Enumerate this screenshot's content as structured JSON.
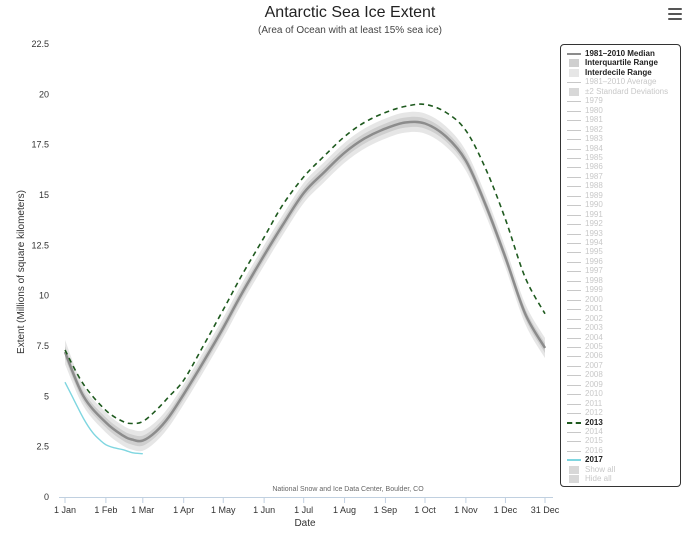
{
  "title": "Antarctic Sea Ice Extent",
  "subtitle": "(Area of Ocean with at least 15% sea ice)",
  "credit": "National Snow and Ice Data Center, Boulder, CO",
  "menu_icon": "hamburger-menu-icon",
  "colors": {
    "median": "#8c8c8c",
    "iqr": "#cfcfcf",
    "idr": "#e6e6e6",
    "year_2013": "#1f5a1f",
    "year_2017": "#7fd6e0",
    "inactive": "#c8c8c8",
    "axis_line": "#c0d0e0"
  },
  "chart_data": {
    "type": "line",
    "title": "Antarctic Sea Ice Extent",
    "subtitle": "(Area of Ocean with at least 15% sea ice)",
    "xlabel": "Date",
    "ylabel": "Extent (Millions of square kilometers)",
    "x_ticks": [
      "1 Jan",
      "1 Feb",
      "1 Mar",
      "1 Apr",
      "1 May",
      "1 Jun",
      "1 Jul",
      "1 Aug",
      "1 Sep",
      "1 Oct",
      "1 Nov",
      "1 Dec",
      "31 Dec"
    ],
    "x_tick_days": [
      1,
      32,
      60,
      91,
      121,
      152,
      182,
      213,
      244,
      274,
      305,
      335,
      365
    ],
    "ylim": [
      0,
      22.5
    ],
    "y_ticks": [
      0,
      2.5,
      5,
      7.5,
      10,
      12.5,
      15,
      17.5,
      20,
      22.5
    ],
    "grid": false,
    "legend_position": "right",
    "series": [
      {
        "name": "1981-2010 Median",
        "style": "line",
        "x": [
          1,
          15,
          32,
          45,
          52,
          60,
          70,
          80,
          91,
          105,
          121,
          135,
          152,
          166,
          182,
          197,
          213,
          228,
          244,
          259,
          274,
          290,
          305,
          320,
          335,
          350,
          365
        ],
        "y": [
          7.2,
          5.0,
          3.7,
          3.05,
          2.85,
          2.8,
          3.25,
          4.0,
          5.1,
          6.6,
          8.4,
          10.1,
          12.0,
          13.5,
          15.1,
          16.1,
          17.1,
          17.8,
          18.3,
          18.6,
          18.55,
          17.9,
          16.7,
          14.5,
          11.9,
          9.1,
          7.4
        ]
      },
      {
        "name": "Interquartile Range",
        "style": "band",
        "lower": [
          6.9,
          4.75,
          3.45,
          2.8,
          2.6,
          2.55,
          3.0,
          3.75,
          4.85,
          6.35,
          8.15,
          9.85,
          11.75,
          13.25,
          14.85,
          15.85,
          16.85,
          17.55,
          18.05,
          18.35,
          18.3,
          17.65,
          16.45,
          14.25,
          11.65,
          8.85,
          7.15
        ],
        "upper": [
          7.5,
          5.25,
          3.95,
          3.3,
          3.1,
          3.05,
          3.5,
          4.25,
          5.35,
          6.85,
          8.65,
          10.35,
          12.25,
          13.75,
          15.35,
          16.35,
          17.35,
          18.05,
          18.55,
          18.85,
          18.8,
          18.15,
          16.95,
          14.75,
          12.15,
          9.35,
          7.65
        ]
      },
      {
        "name": "Interdecile Range",
        "style": "band",
        "lower": [
          6.6,
          4.5,
          3.2,
          2.55,
          2.35,
          2.3,
          2.75,
          3.5,
          4.6,
          6.1,
          7.9,
          9.6,
          11.5,
          13.0,
          14.6,
          15.6,
          16.6,
          17.3,
          17.8,
          18.1,
          18.05,
          17.4,
          16.2,
          14.0,
          11.4,
          8.6,
          6.9
        ],
        "upper": [
          7.8,
          5.5,
          4.2,
          3.55,
          3.35,
          3.3,
          3.75,
          4.5,
          5.6,
          7.1,
          8.9,
          10.6,
          12.5,
          14.0,
          15.6,
          16.6,
          17.6,
          18.3,
          18.8,
          19.1,
          19.05,
          18.4,
          17.2,
          15.0,
          12.4,
          9.6,
          7.9
        ]
      },
      {
        "name": "2013",
        "style": "dashed",
        "x": [
          1,
          15,
          32,
          45,
          52,
          60,
          70,
          80,
          91,
          105,
          121,
          135,
          152,
          166,
          182,
          197,
          213,
          228,
          244,
          259,
          274,
          290,
          305,
          320,
          335,
          350,
          365
        ],
        "y": [
          7.3,
          5.6,
          4.3,
          3.75,
          3.65,
          3.75,
          4.3,
          5.0,
          5.8,
          7.4,
          9.3,
          11.0,
          12.9,
          14.5,
          15.9,
          16.9,
          17.9,
          18.6,
          19.1,
          19.4,
          19.5,
          19.1,
          18.2,
          16.3,
          13.8,
          10.9,
          9.1
        ]
      },
      {
        "name": "2017",
        "style": "line",
        "x": [
          1,
          8,
          15,
          22,
          28,
          32,
          38,
          45,
          52,
          60
        ],
        "y": [
          5.7,
          4.8,
          3.9,
          3.2,
          2.8,
          2.6,
          2.45,
          2.35,
          2.2,
          2.15
        ]
      }
    ]
  },
  "legend": {
    "items": [
      {
        "label": "1981–2010 Median",
        "active": true,
        "symbol": "median"
      },
      {
        "label": "Interquartile Range",
        "active": true,
        "symbol": "iqr"
      },
      {
        "label": "Interdecile Range",
        "active": true,
        "symbol": "idr"
      },
      {
        "label": "1981–2010 Average",
        "active": false,
        "symbol": "line"
      },
      {
        "label": "±2 Standard Deviations",
        "active": false,
        "symbol": "box"
      },
      {
        "label": "1979",
        "active": false,
        "symbol": "line"
      },
      {
        "label": "1980",
        "active": false,
        "symbol": "line"
      },
      {
        "label": "1981",
        "active": false,
        "symbol": "line"
      },
      {
        "label": "1982",
        "active": false,
        "symbol": "line"
      },
      {
        "label": "1983",
        "active": false,
        "symbol": "line"
      },
      {
        "label": "1984",
        "active": false,
        "symbol": "line"
      },
      {
        "label": "1985",
        "active": false,
        "symbol": "line"
      },
      {
        "label": "1986",
        "active": false,
        "symbol": "line"
      },
      {
        "label": "1987",
        "active": false,
        "symbol": "line"
      },
      {
        "label": "1988",
        "active": false,
        "symbol": "line"
      },
      {
        "label": "1989",
        "active": false,
        "symbol": "line"
      },
      {
        "label": "1990",
        "active": false,
        "symbol": "line"
      },
      {
        "label": "1991",
        "active": false,
        "symbol": "line"
      },
      {
        "label": "1992",
        "active": false,
        "symbol": "line"
      },
      {
        "label": "1993",
        "active": false,
        "symbol": "line"
      },
      {
        "label": "1994",
        "active": false,
        "symbol": "line"
      },
      {
        "label": "1995",
        "active": false,
        "symbol": "line"
      },
      {
        "label": "1996",
        "active": false,
        "symbol": "line"
      },
      {
        "label": "1997",
        "active": false,
        "symbol": "line"
      },
      {
        "label": "1998",
        "active": false,
        "symbol": "line"
      },
      {
        "label": "1999",
        "active": false,
        "symbol": "line"
      },
      {
        "label": "2000",
        "active": false,
        "symbol": "line"
      },
      {
        "label": "2001",
        "active": false,
        "symbol": "line"
      },
      {
        "label": "2002",
        "active": false,
        "symbol": "line"
      },
      {
        "label": "2003",
        "active": false,
        "symbol": "line"
      },
      {
        "label": "2004",
        "active": false,
        "symbol": "line"
      },
      {
        "label": "2005",
        "active": false,
        "symbol": "line"
      },
      {
        "label": "2006",
        "active": false,
        "symbol": "line"
      },
      {
        "label": "2007",
        "active": false,
        "symbol": "line"
      },
      {
        "label": "2008",
        "active": false,
        "symbol": "line"
      },
      {
        "label": "2009",
        "active": false,
        "symbol": "line"
      },
      {
        "label": "2010",
        "active": false,
        "symbol": "line"
      },
      {
        "label": "2011",
        "active": false,
        "symbol": "line"
      },
      {
        "label": "2012",
        "active": false,
        "symbol": "line"
      },
      {
        "label": "2013",
        "active": true,
        "symbol": "dashed"
      },
      {
        "label": "2014",
        "active": false,
        "symbol": "line"
      },
      {
        "label": "2015",
        "active": false,
        "symbol": "line"
      },
      {
        "label": "2016",
        "active": false,
        "symbol": "line"
      },
      {
        "label": "2017",
        "active": true,
        "symbol": "cyan"
      },
      {
        "label": "Show all",
        "active": false,
        "symbol": "box"
      },
      {
        "label": "Hide all",
        "active": false,
        "symbol": "box"
      }
    ]
  }
}
